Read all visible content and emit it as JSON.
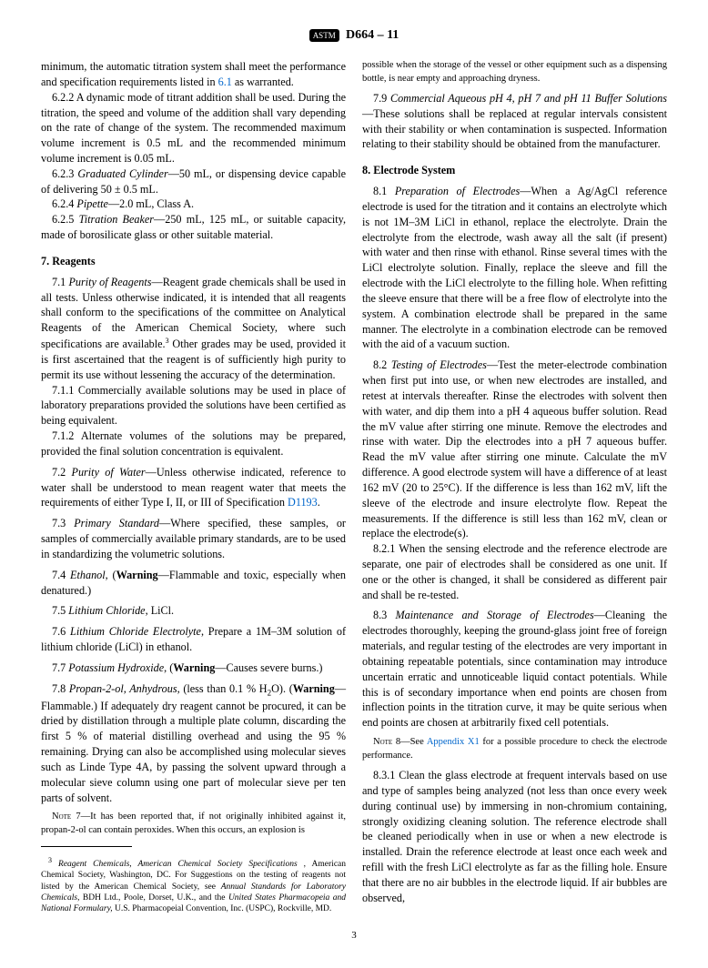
{
  "header": {
    "logo": "ASTM",
    "designation": "D664 – 11"
  },
  "left_column": {
    "p1": "minimum, the automatic titration system shall meet the performance and specification requirements listed in ",
    "p1_ref": "6.1",
    "p1_end": " as warranted.",
    "p2": "6.2.2 A dynamic mode of titrant addition shall be used. During the titration, the speed and volume of the addition shall vary depending on the rate of change of the system. The recommended maximum volume increment is 0.5 mL and the recommended minimum volume increment is 0.05 mL.",
    "p3_num": "6.2.3 ",
    "p3_term": "Graduated Cylinder",
    "p3_rest": "—50 mL, or dispensing device capable of delivering 50 ± 0.5 mL.",
    "p4_num": "6.2.4 ",
    "p4_term": "Pipette",
    "p4_rest": "—2.0 mL, Class A.",
    "p5_num": "6.2.5 ",
    "p5_term": "Titration Beaker",
    "p5_rest": "—250 mL, 125 mL, or suitable capacity, made of borosilicate glass or other suitable material.",
    "sec7": "7. Reagents",
    "p7_1_num": "7.1 ",
    "p7_1_term": "Purity of Reagents",
    "p7_1_rest": "—Reagent grade chemicals shall be used in all tests. Unless otherwise indicated, it is intended that all reagents shall conform to the specifications of the committee on Analytical Reagents of the American Chemical Society, where such specifications are available.",
    "p7_1_sup": "3",
    "p7_1_end": " Other grades may be used, provided it is first ascertained that the reagent is of sufficiently high purity to permit its use without lessening the accuracy of the determination.",
    "p7_1_1": "7.1.1 Commercially available solutions may be used in place of laboratory preparations provided the solutions have been certified as being equivalent.",
    "p7_1_2": "7.1.2 Alternate volumes of the solutions may be prepared, provided the final solution concentration is equivalent.",
    "p7_2_num": "7.2 ",
    "p7_2_term": "Purity of Water",
    "p7_2_rest": "—Unless otherwise indicated, reference to water shall be understood to mean reagent water that meets the requirements of either Type I, II, or III of Specification ",
    "p7_2_ref": "D1193",
    "p7_2_end": ".",
    "p7_3_num": "7.3 ",
    "p7_3_term": "Primary Standard",
    "p7_3_rest": "—Where specified, these samples, or samples of commercially available primary standards, are to be used in standardizing the volumetric solutions.",
    "p7_4_num": "7.4 ",
    "p7_4_term": "Ethanol",
    "p7_4_rest": ", (",
    "p7_4_warn": "Warning",
    "p7_4_end": "—Flammable and toxic, especially when denatured.)",
    "p7_5_num": "7.5 ",
    "p7_5_term": "Lithium Chloride",
    "p7_5_rest": ", LiCl.",
    "p7_6_num": "7.6 ",
    "p7_6_term": "Lithium Chloride Electrolyte",
    "p7_6_rest": ", Prepare a 1M–3M solution of lithium chloride (LiCl) in ethanol.",
    "p7_7_num": "7.7 ",
    "p7_7_term": "Potassium Hydroxide",
    "p7_7_rest": ", (",
    "p7_7_warn": "Warning",
    "p7_7_end": "—Causes severe burns.)",
    "p7_8_num": "7.8 ",
    "p7_8_term": "Propan-2-ol, Anhydrous",
    "p7_8_rest": ", (less than 0.1 % H",
    "p7_8_sub": "2",
    "p7_8_rest2": "O). (",
    "p7_8_warn": "Warning",
    "p7_8_end": "—Flammable.) If adequately dry reagent cannot be procured, it can be dried by distillation through a multiple plate column, discarding the first 5 % of material distilling overhead and using the 95 % remaining. Drying can also be accomplished using molecular sieves such as Linde Type 4A, by passing the solvent upward through a molecular sieve column using one part of molecular sieve per ten parts of solvent.",
    "note7_label": "Note",
    "note7_num": " 7—",
    "note7_text": "It has been reported that, if not originally inhibited against it, propan-2-ol can contain peroxides. When this occurs, an explosion is",
    "fn_sup": "3",
    "fn_text1": " Reagent Chemicals, American Chemical Society Specifications ",
    "fn_text2": ", American Chemical Society, Washington, DC. For Suggestions on the testing of reagents not listed by the American Chemical Society, see ",
    "fn_text3": "Annual Standards for Laboratory Chemicals,",
    "fn_text4": " BDH Ltd., Poole, Dorset, U.K., and the ",
    "fn_text5": "United States Pharmacopeia and National Formulary,",
    "fn_text6": " U.S. Pharmacopeial Convention, Inc. (USPC), Rockville, MD."
  },
  "right_column": {
    "r1": "possible when the storage of the vessel or other equipment such as a dispensing bottle, is near empty and approaching dryness.",
    "p7_9_num": "7.9 ",
    "p7_9_term": "Commercial Aqueous pH 4, pH 7 and pH 11 Buffer Solutions",
    "p7_9_rest": "—These solutions shall be replaced at regular intervals consistent with their stability or when contamination is suspected. Information relating to their stability should be obtained from the manufacturer.",
    "sec8": "8. Electrode System",
    "p8_1_num": "8.1 ",
    "p8_1_term": "Preparation of Electrodes",
    "p8_1_rest": "—When a Ag/AgCl reference electrode is used for the titration and it contains an electrolyte which is not 1M–3M LiCl in ethanol, replace the electrolyte. Drain the electrolyte from the electrode, wash away all the salt (if present) with water and then rinse with ethanol. Rinse several times with the LiCl electrolyte solution. Finally, replace the sleeve and fill the electrode with the LiCl electrolyte to the filling hole. When refitting the sleeve ensure that there will be a free flow of electrolyte into the system. A combination electrode shall be prepared in the same manner. The electrolyte in a combination electrode can be removed with the aid of a vacuum suction.",
    "p8_2_num": "8.2 ",
    "p8_2_term": "Testing of Electrodes",
    "p8_2_rest": "—Test the meter-electrode combination when first put into use, or when new electrodes are installed, and retest at intervals thereafter. Rinse the electrodes with solvent then with water, and dip them into a pH 4 aqueous buffer solution. Read the mV value after stirring one minute. Remove the electrodes and rinse with water. Dip the electrodes into a pH 7 aqueous buffer. Read the mV value after stirring one minute. Calculate the mV difference. A good electrode system will have a difference of at least 162 mV (20 to 25°C). If the difference is less than 162 mV, lift the sleeve of the electrode and insure electrolyte flow. Repeat the measurements. If the difference is still less than 162 mV, clean or replace the electrode(s).",
    "p8_2_1": "8.2.1 When the sensing electrode and the reference electrode are separate, one pair of electrodes shall be considered as one unit. If one or the other is changed, it shall be considered as different pair and shall be re-tested.",
    "p8_3_num": "8.3 ",
    "p8_3_term": "Maintenance and Storage of Electrodes",
    "p8_3_rest": "—Cleaning the electrodes thoroughly, keeping the ground-glass joint free of foreign materials, and regular testing of the electrodes are very important in obtaining repeatable potentials, since contamination may introduce uncertain erratic and unnoticeable liquid contact potentials. While this is of secondary importance when end points are chosen from inflection points in the titration curve, it may be quite serious when end points are chosen at arbitrarily fixed cell potentials.",
    "note8_label": "Note",
    "note8_num": " 8—",
    "note8_text1": "See ",
    "note8_ref": "Appendix X1",
    "note8_text2": " for a possible procedure to check the electrode performance.",
    "p8_3_1": "8.3.1 Clean the glass electrode at frequent intervals based on use and type of samples being analyzed (not less than once every week during continual use) by immersing in non-chromium containing, strongly oxidizing cleaning solution. The reference electrode shall be cleaned periodically when in use or when a new electrode is installed. Drain the reference electrode at least once each week and refill with the fresh LiCl electrolyte as far as the filling hole. Ensure that there are no air bubbles in the electrode liquid. If air bubbles are observed,"
  },
  "page_number": "3"
}
